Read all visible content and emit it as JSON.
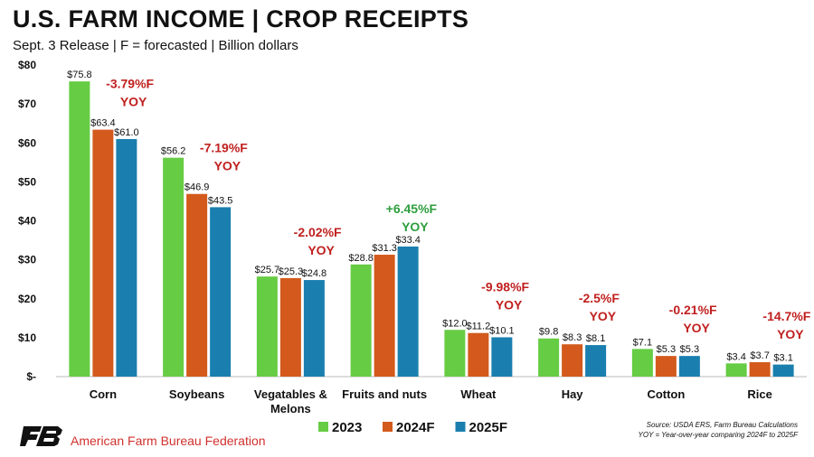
{
  "title": "U.S. FARM INCOME | CROP RECEIPTS",
  "subtitle": "Sept. 3 Release | F = forecasted | Billion dollars",
  "source_line1": "Source: USDA ERS, Farm Bureau Calculations",
  "source_line2": "YOY = Year-over-year comparing 2024F to 2025F",
  "org_name": "American Farm Bureau Federation",
  "chart_data": {
    "type": "bar",
    "title": "U.S. FARM INCOME | CROP RECEIPTS",
    "ylabel": "",
    "xlabel": "",
    "ylim": [
      0,
      80
    ],
    "yticks": [
      0,
      10,
      20,
      30,
      40,
      50,
      60,
      70,
      80
    ],
    "ytick_labels": [
      "$-",
      "$10",
      "$20",
      "$30",
      "$40",
      "$50",
      "$60",
      "$70",
      "$80"
    ],
    "grid": false,
    "legend_position": "bottom",
    "categories": [
      "Corn",
      "Soybeans",
      "Vegatables & Melons",
      "Fruits and nuts",
      "Wheat",
      "Hay",
      "Cotton",
      "Rice"
    ],
    "category_lines": [
      [
        "Corn"
      ],
      [
        "Soybeans"
      ],
      [
        "Vegatables &",
        "Melons"
      ],
      [
        "Fruits and nuts"
      ],
      [
        "Wheat"
      ],
      [
        "Hay"
      ],
      [
        "Cotton"
      ],
      [
        "Rice"
      ]
    ],
    "series": [
      {
        "name": "2023",
        "color": "#66cc44",
        "values": [
          75.8,
          56.2,
          25.7,
          28.8,
          12.0,
          9.8,
          7.1,
          3.4
        ],
        "labels": [
          "$75.8",
          "$56.2",
          "$25.7",
          "$28.8",
          "$12.0",
          "$9.8",
          "$7.1",
          "$3.4"
        ]
      },
      {
        "name": "2024F",
        "color": "#d35a1c",
        "values": [
          63.4,
          46.9,
          25.3,
          31.3,
          11.2,
          8.3,
          5.3,
          3.7
        ],
        "labels": [
          "$63.4",
          "$46.9",
          "$25.3",
          "$31.3",
          "$11.2",
          "$8.3",
          "$5.3",
          "$3.7"
        ]
      },
      {
        "name": "2025F",
        "color": "#1a7fae",
        "values": [
          61.0,
          43.5,
          24.8,
          33.4,
          10.1,
          8.1,
          5.3,
          3.1
        ],
        "labels": [
          "$61.0",
          "$43.5",
          "$24.8",
          "$33.4",
          "$10.1",
          "$8.1",
          "$5.3",
          "$3.1"
        ]
      }
    ],
    "annotations": [
      {
        "category": "Corn",
        "pct": "-3.79%F",
        "suffix": "YOY",
        "value": -3.79,
        "color": "#c0201f"
      },
      {
        "category": "Soybeans",
        "pct": "-7.19%F",
        "suffix": "YOY",
        "value": -7.19,
        "color": "#c0201f"
      },
      {
        "category": "Vegatables & Melons",
        "pct": "-2.02%F",
        "suffix": "YOY",
        "value": -2.02,
        "color": "#c0201f"
      },
      {
        "category": "Fruits and nuts",
        "pct": "+6.45%F",
        "suffix": "YOY",
        "value": 6.45,
        "color": "#2e9e3e"
      },
      {
        "category": "Wheat",
        "pct": "-9.98%F",
        "suffix": "YOY",
        "value": -9.98,
        "color": "#c0201f"
      },
      {
        "category": "Hay",
        "pct": "-2.5%F",
        "suffix": "YOY",
        "value": -2.5,
        "color": "#c0201f"
      },
      {
        "category": "Cotton",
        "pct": "-0.21%F",
        "suffix": "YOY",
        "value": -0.21,
        "color": "#c0201f"
      },
      {
        "category": "Rice",
        "pct": "-14.7%F",
        "suffix": "YOY",
        "value": -14.7,
        "color": "#c0201f"
      }
    ]
  }
}
